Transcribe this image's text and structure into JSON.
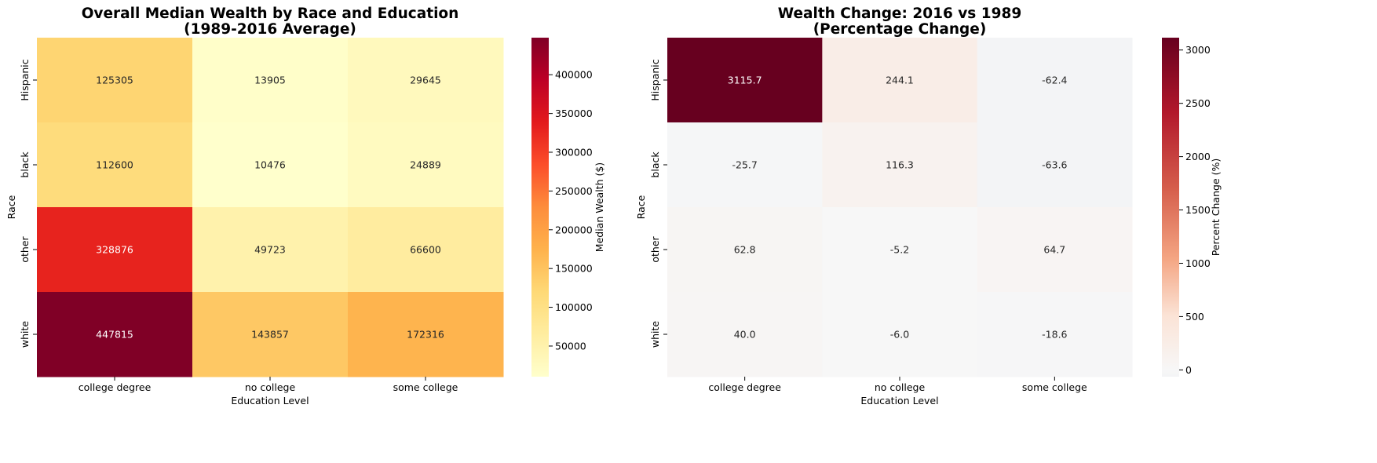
{
  "chart_data": [
    {
      "type": "heatmap",
      "title": "Overall Median Wealth by Race and Education",
      "subtitle": "(1989-2016 Average)",
      "xlabel": "Education Level",
      "ylabel": "Race",
      "x_categories": [
        "college degree",
        "no college",
        "some college"
      ],
      "y_categories": [
        "Hispanic",
        "black",
        "other",
        "white"
      ],
      "values": [
        [
          125305,
          13905,
          29645
        ],
        [
          112600,
          10476,
          24889
        ],
        [
          328876,
          49723,
          66600
        ],
        [
          447815,
          143857,
          172316
        ]
      ],
      "colorbar": {
        "label": "Median Wealth ($)",
        "range": [
          10476,
          447815
        ],
        "ticks": [
          50000,
          100000,
          150000,
          200000,
          250000,
          300000,
          350000,
          400000
        ],
        "colormap": "YlOrRd"
      }
    },
    {
      "type": "heatmap",
      "title": "Wealth Change: 2016 vs 1989",
      "subtitle": "(Percentage Change)",
      "xlabel": "Education Level",
      "ylabel": "Race",
      "x_categories": [
        "college degree",
        "no college",
        "some college"
      ],
      "y_categories": [
        "Hispanic",
        "black",
        "other",
        "white"
      ],
      "values": [
        [
          3115.7,
          244.1,
          -62.4
        ],
        [
          -25.7,
          116.3,
          -63.6
        ],
        [
          62.8,
          -5.2,
          64.7
        ],
        [
          40.0,
          -6.0,
          -18.6
        ]
      ],
      "colorbar": {
        "label": "Percent Change (%)",
        "range": [
          -63.6,
          3115.7
        ],
        "ticks": [
          0,
          500,
          1000,
          1500,
          2000,
          2500,
          3000
        ],
        "colormap": "RdBu_r"
      }
    }
  ]
}
